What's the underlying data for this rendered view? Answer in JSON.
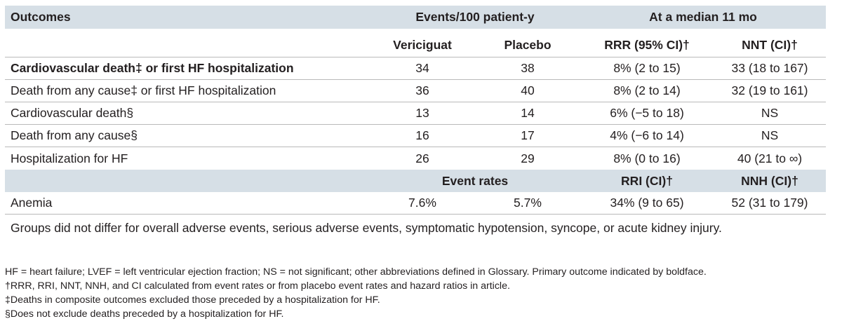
{
  "table": {
    "header": {
      "outcomes": "Outcomes",
      "events_group": "Events/100 patient-y",
      "median_group": "At a median 11 mo",
      "vericiguat": "Vericiguat",
      "placebo": "Placebo",
      "rrr": "RRR (95% CI)†",
      "nnt": "NNT (CI)†"
    },
    "rows": [
      {
        "outcome": "Cardiovascular death‡ or first HF hospitalization",
        "vericiguat": "34",
        "placebo": "38",
        "rrr": "8% (2 to 15)",
        "nnt": "33 (18 to 167)"
      },
      {
        "outcome": "Death from any cause‡ or first HF hospitalization",
        "vericiguat": "36",
        "placebo": "40",
        "rrr": "8% (2 to 14)",
        "nnt": "32 (19 to 161)"
      },
      {
        "outcome": "Cardiovascular death§",
        "vericiguat": "13",
        "placebo": "14",
        "rrr": "6% (−5 to 18)",
        "nnt": "NS"
      },
      {
        "outcome": "Death from any cause§",
        "vericiguat": "16",
        "placebo": "17",
        "rrr": "4% (−6 to 14)",
        "nnt": "NS"
      },
      {
        "outcome": "Hospitalization for HF",
        "vericiguat": "26",
        "placebo": "29",
        "rrr": "8% (0 to 16)",
        "nnt": "40 (21 to ∞)"
      }
    ],
    "subheader": {
      "event_rates": "Event rates",
      "rri": "RRI (CI)†",
      "nnh": "NNH (CI)†"
    },
    "adverse": {
      "outcome": "Anemia",
      "vericiguat": "7.6%",
      "placebo": "5.7%",
      "rri": "34% (9 to 65)",
      "nnh": "52 (31 to 179)"
    },
    "note": "Groups did not differ for overall adverse events, serious adverse events, symptomatic hypotension, syncope, or acute kidney injury."
  },
  "footnotes": [
    "HF = heart failure; LVEF = left ventricular ejection fraction; NS = not significant; other abbreviations defined in Glossary. Primary outcome indicated by boldface.",
    "†RRR, RRI, NNT, NNH, and CI calculated from event rates or from placebo event rates and hazard ratios in article.",
    "‡Deaths in composite outcomes excluded those preceded by a hospitalization for HF.",
    "§Does not exclude deaths preceded by a hospitalization for HF."
  ]
}
